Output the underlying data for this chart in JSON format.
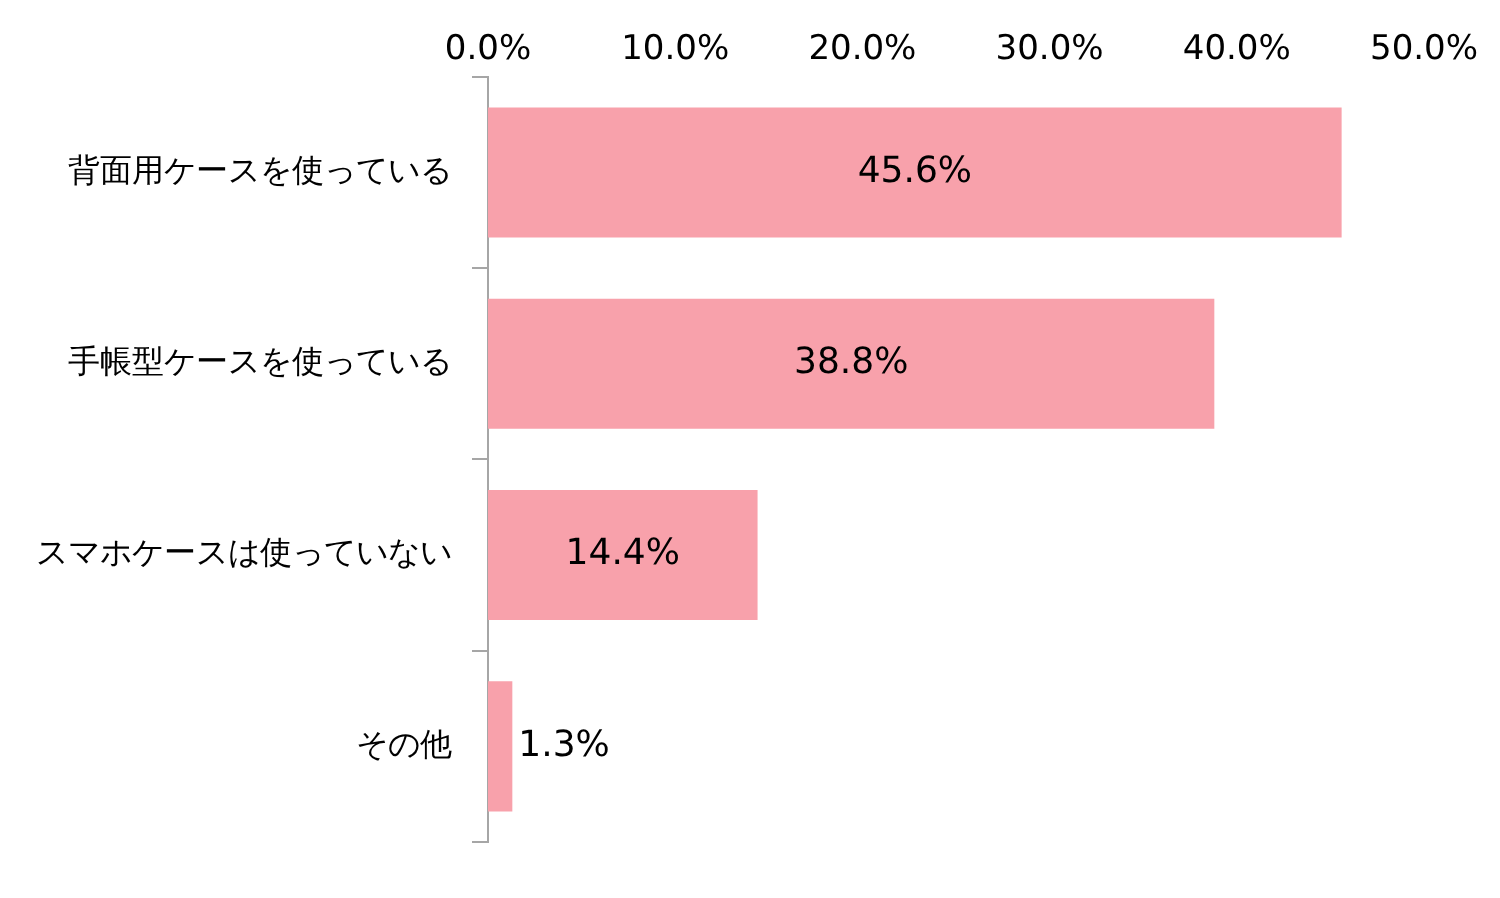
{
  "chart_data": {
    "type": "bar",
    "orientation": "horizontal",
    "categories": [
      "背面用ケースを使っている",
      "手帳型ケースを使っている",
      "スマホケースは使っていない",
      "その他"
    ],
    "values": [
      45.6,
      38.8,
      14.4,
      1.3
    ],
    "value_labels": [
      "45.6%",
      "38.8%",
      "14.4%",
      "1.3%"
    ],
    "color": "#f8a1ab",
    "xlim": [
      0,
      50
    ],
    "xticks": [
      {
        "value": 0,
        "label": "0.0%"
      },
      {
        "value": 10,
        "label": "10.0%"
      },
      {
        "value": 20,
        "label": "20.0%"
      },
      {
        "value": 30,
        "label": "30.0%"
      },
      {
        "value": 40,
        "label": "40.0%"
      },
      {
        "value": 50,
        "label": "50.0%"
      }
    ],
    "grid": false,
    "legend": false
  }
}
